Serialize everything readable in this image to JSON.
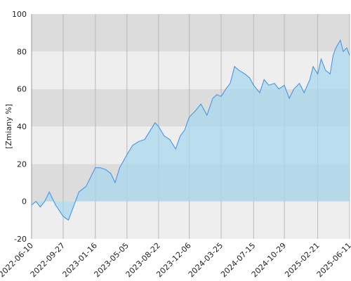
{
  "chart_data": {
    "type": "area",
    "y_label": "[Zmiany %]",
    "x": [
      "2022-06-10",
      "2022-06-25",
      "2022-07-10",
      "2022-07-25",
      "2022-08-10",
      "2022-09-01",
      "2022-09-27",
      "2022-10-15",
      "2022-11-01",
      "2022-11-20",
      "2022-12-15",
      "2023-01-16",
      "2023-02-01",
      "2023-02-20",
      "2023-03-10",
      "2023-03-25",
      "2023-04-10",
      "2023-05-05",
      "2023-05-25",
      "2023-06-15",
      "2023-07-05",
      "2023-07-25",
      "2023-08-10",
      "2023-08-22",
      "2023-09-10",
      "2023-09-30",
      "2023-10-20",
      "2023-11-05",
      "2023-11-20",
      "2023-12-06",
      "2023-12-25",
      "2024-01-15",
      "2024-02-05",
      "2024-02-25",
      "2024-03-10",
      "2024-03-25",
      "2024-04-10",
      "2024-04-25",
      "2024-05-10",
      "2024-05-25",
      "2024-06-15",
      "2024-07-01",
      "2024-07-15",
      "2024-08-05",
      "2024-08-20",
      "2024-09-05",
      "2024-09-25",
      "2024-10-10",
      "2024-10-29",
      "2024-11-15",
      "2024-12-01",
      "2024-12-20",
      "2025-01-05",
      "2025-01-25",
      "2025-02-05",
      "2025-02-21",
      "2025-03-05",
      "2025-03-20",
      "2025-04-05",
      "2025-04-15",
      "2025-04-25",
      "2025-05-10",
      "2025-05-20",
      "2025-06-01",
      "2025-06-11"
    ],
    "values": [
      -2,
      0,
      -3,
      0,
      5,
      -2,
      -8,
      -10,
      -3,
      5,
      8,
      18,
      18,
      17,
      15,
      10,
      18,
      25,
      30,
      32,
      33,
      38,
      42,
      40,
      35,
      33,
      28,
      35,
      38,
      45,
      48,
      52,
      46,
      55,
      57,
      56,
      60,
      63,
      72,
      70,
      68,
      66,
      62,
      58,
      65,
      62,
      63,
      60,
      62,
      55,
      60,
      63,
      58,
      65,
      72,
      68,
      76,
      70,
      68,
      78,
      82,
      86,
      80,
      82,
      78
    ],
    "line_color": "#3a8ee6",
    "fill_color": "#a8d8ee",
    "xlim": [
      "2022-06-10",
      "2025-06-11"
    ],
    "xticks": [
      "2022-06-10",
      "2022-09-27",
      "2023-01-16",
      "2023-05-05",
      "2023-08-22",
      "2023-12-06",
      "2024-03-25",
      "2024-07-15",
      "2024-10-29",
      "2025-02-21",
      "2025-06-11"
    ],
    "ylim": [
      -20,
      100
    ],
    "yticks": [
      -20,
      0,
      20,
      40,
      60,
      80,
      100
    ],
    "grid": true
  }
}
